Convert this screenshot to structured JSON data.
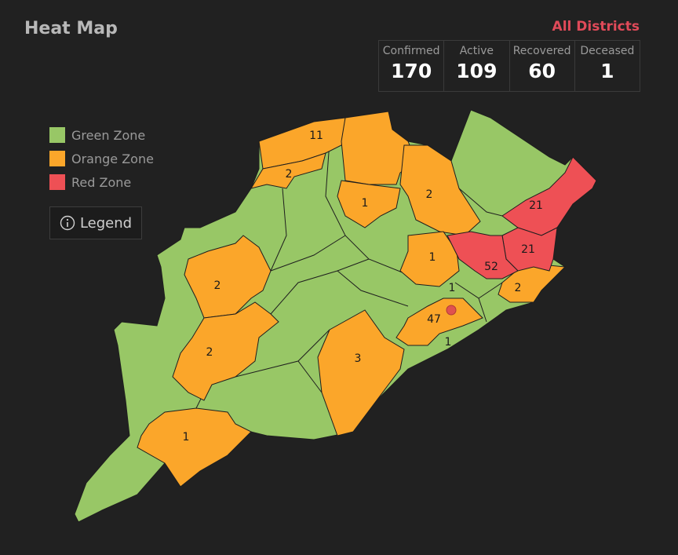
{
  "header": {
    "title": "Heat Map",
    "filter": "All Districts"
  },
  "stats": [
    {
      "label": "Confirmed",
      "value": 170
    },
    {
      "label": "Active",
      "value": 109
    },
    {
      "label": "Recovered",
      "value": 60
    },
    {
      "label": "Deceased",
      "value": 1
    }
  ],
  "legend": [
    {
      "label": "Green Zone",
      "color": "#98c766"
    },
    {
      "label": "Orange Zone",
      "color": "#fba62a"
    },
    {
      "label": "Red Zone",
      "color": "#ee5055"
    }
  ],
  "legend_button": "Legend",
  "districts": [
    {
      "label": 11,
      "color": "#fba62a"
    },
    {
      "label": 2,
      "color": "#fba62a"
    },
    {
      "color": "#fba62a"
    },
    {
      "label": 1,
      "color": "#fba62a"
    },
    {
      "label": 2,
      "color": "#fba62a"
    },
    {
      "label": 1,
      "color": "#fba62a"
    },
    {
      "label": 2,
      "color": "#fba62a"
    },
    {
      "label": 47,
      "color": "#fba62a"
    },
    {
      "label": 3,
      "color": "#fba62a"
    },
    {
      "label": 2,
      "color": "#fba62a"
    },
    {
      "label": 2,
      "color": "#fba62a"
    },
    {
      "label": 1,
      "color": "#fba62a"
    },
    {
      "label": 21,
      "color": "#ee5055"
    },
    {
      "label": 21,
      "color": "#ee5055"
    },
    {
      "label": 52,
      "color": "#ee5055"
    },
    {
      "label": 1,
      "color": "#98c766"
    },
    {
      "label": 1,
      "color": "#98c766"
    }
  ]
}
